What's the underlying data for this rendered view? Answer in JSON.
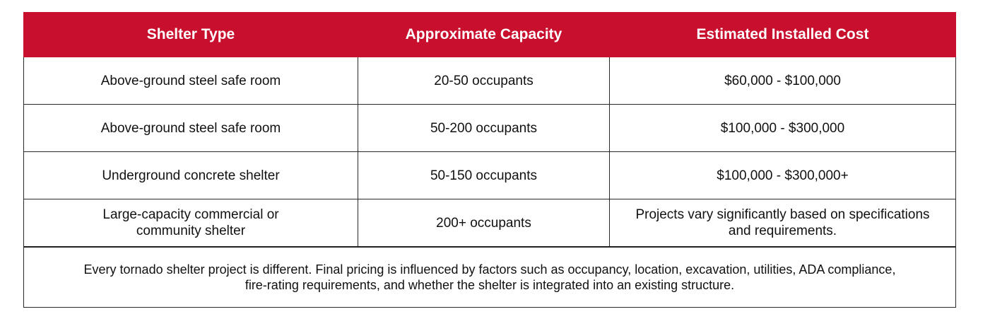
{
  "table": {
    "headers": [
      "Shelter Type",
      "Approximate Capacity",
      "Estimated Installed Cost"
    ],
    "rows": [
      [
        "Above-ground steel safe room",
        "20-50 occupants",
        "$60,000 - $100,000"
      ],
      [
        "Above-ground steel safe room",
        "50-200 occupants",
        "$100,000 - $300,000"
      ],
      [
        "Underground concrete shelter",
        "50-150 occupants",
        "$100,000 - $300,000+"
      ],
      [
        "Large-capacity commercial or community shelter",
        "200+ occupants",
        "Projects vary significantly based on specifications and requirements."
      ]
    ],
    "footnote": "Every tornado shelter project is different. Final pricing is influenced by factors such as occupancy, location, excavation, utilities, ADA compliance, fire-rating requirements, and whether the shelter is integrated into an existing structure."
  },
  "colors": {
    "header_bg": "#c8102e",
    "header_text": "#ffffff",
    "border": "#2a2a2a"
  }
}
